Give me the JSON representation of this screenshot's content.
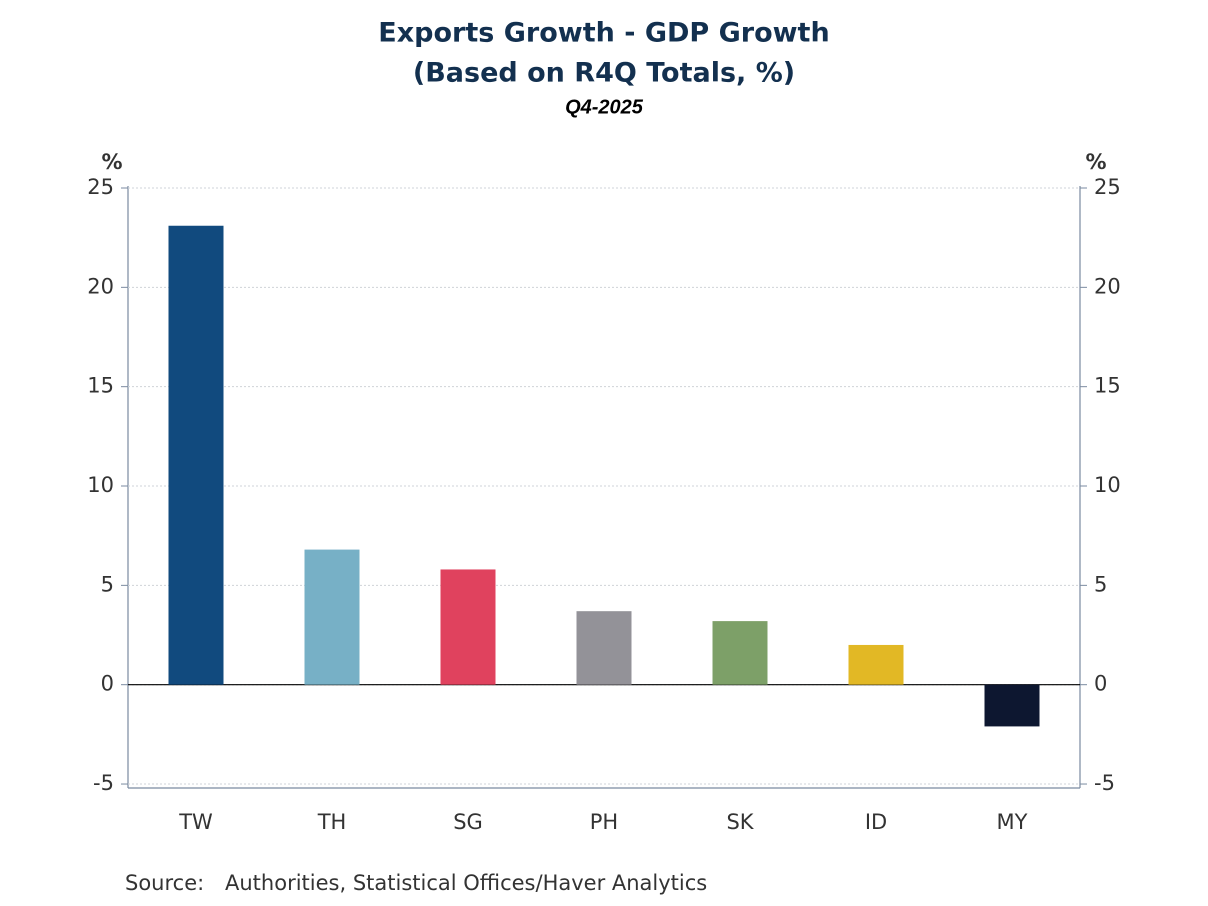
{
  "chart_data": {
    "type": "bar",
    "title": [
      "Exports Growth - GDP Growth",
      "(Based on R4Q Totals, %)"
    ],
    "subtitle": "Q4-2025",
    "ylabel": "%",
    "y2label": "%",
    "categories": [
      "TW",
      "TH",
      "SG",
      "PH",
      "SK",
      "ID",
      "MY"
    ],
    "values": [
      23.1,
      6.8,
      5.8,
      3.7,
      3.2,
      2.0,
      -2.1
    ],
    "colors": [
      "#114a7e",
      "#77b0c6",
      "#e0425e",
      "#939298",
      "#7da068",
      "#e2b825",
      "#0d1730"
    ],
    "ylim": [
      -5.2,
      25
    ],
    "yticks": [
      -5,
      0,
      5,
      10,
      15,
      20,
      25
    ],
    "y2lim": [
      -5.2,
      25
    ],
    "y2ticks": [
      -5,
      0,
      5,
      10,
      15,
      20,
      25
    ],
    "grid": true,
    "source_label": "Source:",
    "source": "Authorities, Statistical Offices/Haver Analytics"
  }
}
